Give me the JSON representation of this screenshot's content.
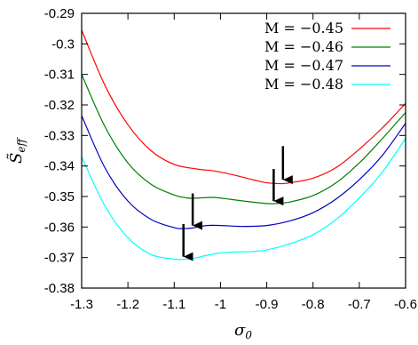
{
  "chart_data": {
    "type": "line",
    "xlabel": "σ0",
    "ylabel": "S̃eff",
    "xlim": [
      -1.3,
      -0.6
    ],
    "ylim": [
      -0.38,
      -0.29
    ],
    "xticks": [
      -1.3,
      -1.2,
      -1.1,
      -1.0,
      -0.9,
      -0.8,
      -0.7,
      -0.6
    ],
    "xtick_labels": [
      "-1.3",
      "-1.2",
      "-1.1",
      "-1",
      "-0.9",
      "-0.8",
      "-0.7",
      "-0.6"
    ],
    "yticks": [
      -0.38,
      -0.37,
      -0.36,
      -0.35,
      -0.34,
      -0.33,
      -0.32,
      -0.31,
      -0.3,
      -0.29
    ],
    "ytick_labels": [
      "-0.38",
      "-0.37",
      "-0.36",
      "-0.35",
      "-0.34",
      "-0.33",
      "-0.32",
      "-0.31",
      "-0.3",
      "-0.29"
    ],
    "grid": false,
    "legend": "top-right",
    "series": [
      {
        "name": "M = −0.45",
        "color": "#ff0000",
        "x": [
          -1.3,
          -1.25,
          -1.2,
          -1.15,
          -1.1,
          -1.05,
          -1.02,
          -1.0,
          -0.97,
          -0.93,
          -0.9,
          -0.87,
          -0.85,
          -0.8,
          -0.75,
          -0.7,
          -0.65,
          -0.6
        ],
        "y": [
          -0.2955,
          -0.3135,
          -0.3265,
          -0.335,
          -0.3395,
          -0.341,
          -0.3415,
          -0.342,
          -0.343,
          -0.3445,
          -0.3455,
          -0.3458,
          -0.3455,
          -0.344,
          -0.3405,
          -0.3345,
          -0.3275,
          -0.3195
        ]
      },
      {
        "name": "M = −0.46",
        "color": "#008000",
        "x": [
          -1.3,
          -1.25,
          -1.2,
          -1.15,
          -1.1,
          -1.07,
          -1.05,
          -1.02,
          -1.0,
          -0.95,
          -0.9,
          -0.88,
          -0.85,
          -0.8,
          -0.75,
          -0.7,
          -0.65,
          -0.6
        ],
        "y": [
          -0.31,
          -0.327,
          -0.339,
          -0.346,
          -0.3495,
          -0.3505,
          -0.3505,
          -0.3503,
          -0.3505,
          -0.3515,
          -0.3523,
          -0.3523,
          -0.3518,
          -0.3497,
          -0.3455,
          -0.339,
          -0.331,
          -0.3225
        ]
      },
      {
        "name": "M = −0.47",
        "color": "#0000c0",
        "x": [
          -1.3,
          -1.25,
          -1.2,
          -1.15,
          -1.1,
          -1.08,
          -1.06,
          -1.03,
          -1.0,
          -0.97,
          -0.95,
          -0.9,
          -0.85,
          -0.8,
          -0.75,
          -0.7,
          -0.65,
          -0.6
        ],
        "y": [
          -0.3235,
          -0.3405,
          -0.3515,
          -0.3575,
          -0.3602,
          -0.3605,
          -0.3603,
          -0.3595,
          -0.3595,
          -0.3597,
          -0.3598,
          -0.3595,
          -0.358,
          -0.3553,
          -0.3508,
          -0.3445,
          -0.3365,
          -0.326
        ]
      },
      {
        "name": "M = −0.48",
        "color": "#00ffff",
        "x": [
          -1.3,
          -1.25,
          -1.2,
          -1.15,
          -1.1,
          -1.08,
          -1.06,
          -1.03,
          -1.0,
          -0.97,
          -0.93,
          -0.9,
          -0.85,
          -0.8,
          -0.75,
          -0.7,
          -0.65,
          -0.6
        ],
        "y": [
          -0.337,
          -0.353,
          -0.3635,
          -0.369,
          -0.3705,
          -0.3706,
          -0.3703,
          -0.3693,
          -0.3685,
          -0.3682,
          -0.368,
          -0.3675,
          -0.3655,
          -0.3625,
          -0.3575,
          -0.3505,
          -0.342,
          -0.331
        ]
      }
    ],
    "annotations": [
      {
        "type": "arrow",
        "x": -0.865,
        "y_from": -0.3335,
        "y_to": -0.3445
      },
      {
        "type": "arrow",
        "x": -0.885,
        "y_from": -0.341,
        "y_to": -0.3515
      },
      {
        "type": "arrow",
        "x": -1.06,
        "y_from": -0.349,
        "y_to": -0.3595
      },
      {
        "type": "arrow",
        "x": -1.08,
        "y_from": -0.359,
        "y_to": -0.3697
      }
    ]
  }
}
